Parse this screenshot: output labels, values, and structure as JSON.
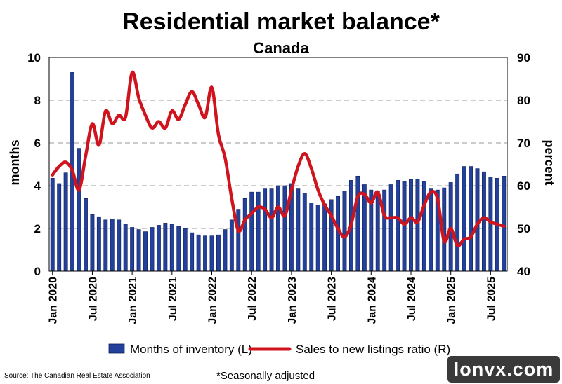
{
  "title": "Residential market balance*",
  "subtitle": "Canada",
  "footer": {
    "source": "Source: The Canadian Real Estate Association",
    "note": "*Seasonally adjusted",
    "watermark": "lonvx.com"
  },
  "colors": {
    "bars": "#23409a",
    "line": "#d0141d",
    "grid": "#9a9a9a"
  },
  "chart_data": {
    "type": "bar+line",
    "y_left": {
      "label": "months",
      "range": [
        0,
        10
      ],
      "ticks": [
        0,
        2,
        4,
        6,
        8,
        10
      ]
    },
    "y_right": {
      "label": "percent",
      "range": [
        40,
        90
      ],
      "ticks": [
        40,
        50,
        60,
        70,
        80,
        90
      ]
    },
    "x_ticks": [
      "Jan 2020",
      "Jul 2020",
      "Jan 2021",
      "Jul 2021",
      "Jan 2022",
      "Jul 2022",
      "Jan 2023",
      "Jul 2023",
      "Jan 2024",
      "Jul 2024",
      "Jan 2025",
      "Jul 2025"
    ],
    "grid": "horizontal dashed",
    "legend_position": "bottom",
    "series": [
      {
        "name": "Months of inventory (L)",
        "type": "bar",
        "axis": "left",
        "x": [
          "2020-01",
          "2020-02",
          "2020-03",
          "2020-04",
          "2020-05",
          "2020-06",
          "2020-07",
          "2020-08",
          "2020-09",
          "2020-10",
          "2020-11",
          "2020-12",
          "2021-01",
          "2021-02",
          "2021-03",
          "2021-04",
          "2021-05",
          "2021-06",
          "2021-07",
          "2021-08",
          "2021-09",
          "2021-10",
          "2021-11",
          "2021-12",
          "2022-01",
          "2022-02",
          "2022-03",
          "2022-04",
          "2022-05",
          "2022-06",
          "2022-07",
          "2022-08",
          "2022-09",
          "2022-10",
          "2022-11",
          "2022-12",
          "2023-01",
          "2023-02",
          "2023-03",
          "2023-04",
          "2023-05",
          "2023-06",
          "2023-07",
          "2023-08",
          "2023-09",
          "2023-10",
          "2023-11",
          "2023-12",
          "2024-01",
          "2024-02",
          "2024-03",
          "2024-04",
          "2024-05",
          "2024-06",
          "2024-07",
          "2024-08",
          "2024-09",
          "2024-10",
          "2024-11",
          "2024-12",
          "2025-01",
          "2025-02",
          "2025-03",
          "2025-04",
          "2025-05",
          "2025-06",
          "2025-07",
          "2025-08",
          "2025-09"
        ],
        "values": [
          4.35,
          4.1,
          4.6,
          9.3,
          5.75,
          3.4,
          2.65,
          2.55,
          2.4,
          2.45,
          2.4,
          2.2,
          2.05,
          1.95,
          1.85,
          2.05,
          2.15,
          2.25,
          2.2,
          2.1,
          2.0,
          1.8,
          1.7,
          1.65,
          1.65,
          1.7,
          1.95,
          2.4,
          2.9,
          3.4,
          3.7,
          3.7,
          3.85,
          3.85,
          4.0,
          4.0,
          4.1,
          3.85,
          3.65,
          3.2,
          3.1,
          3.15,
          3.35,
          3.5,
          3.75,
          4.25,
          4.45,
          4.05,
          3.8,
          3.75,
          3.8,
          4.05,
          4.25,
          4.2,
          4.3,
          4.3,
          4.2,
          3.85,
          3.8,
          3.9,
          4.15,
          4.55,
          4.9,
          4.9,
          4.8,
          4.65,
          4.4,
          4.35,
          4.45
        ]
      },
      {
        "name": "Sales to new listings ratio (R)",
        "type": "line",
        "axis": "right",
        "x": [
          "2020-01",
          "2020-02",
          "2020-03",
          "2020-04",
          "2020-05",
          "2020-06",
          "2020-07",
          "2020-08",
          "2020-09",
          "2020-10",
          "2020-11",
          "2020-12",
          "2021-01",
          "2021-02",
          "2021-03",
          "2021-04",
          "2021-05",
          "2021-06",
          "2021-07",
          "2021-08",
          "2021-09",
          "2021-10",
          "2021-11",
          "2021-12",
          "2022-01",
          "2022-02",
          "2022-03",
          "2022-04",
          "2022-05",
          "2022-06",
          "2022-07",
          "2022-08",
          "2022-09",
          "2022-10",
          "2022-11",
          "2022-12",
          "2023-01",
          "2023-02",
          "2023-03",
          "2023-04",
          "2023-05",
          "2023-06",
          "2023-07",
          "2023-08",
          "2023-09",
          "2023-10",
          "2023-11",
          "2023-12",
          "2024-01",
          "2024-02",
          "2024-03",
          "2024-04",
          "2024-05",
          "2024-06",
          "2024-07",
          "2024-08",
          "2024-09",
          "2024-10",
          "2024-11",
          "2024-12",
          "2025-01",
          "2025-02",
          "2025-03",
          "2025-04",
          "2025-05",
          "2025-06",
          "2025-07",
          "2025-08",
          "2025-09"
        ],
        "values": [
          62.5,
          64.5,
          65.5,
          63.5,
          59,
          67,
          74.5,
          69.5,
          77.5,
          74.5,
          76.5,
          76,
          86.5,
          80.5,
          76.5,
          73.5,
          75,
          73.5,
          77.5,
          75.5,
          79,
          82,
          79,
          76,
          83,
          72,
          66.5,
          57,
          49.5,
          52,
          53.5,
          55,
          54.5,
          52.5,
          55,
          53,
          59,
          64.5,
          67.5,
          64,
          59,
          55.5,
          53,
          50,
          48,
          51,
          57.5,
          58,
          56,
          58.5,
          53,
          52.5,
          52.5,
          51,
          52.5,
          51.5,
          55.5,
          58.5,
          57,
          47,
          50,
          46,
          47.5,
          48,
          51,
          52.5,
          51.5,
          51,
          50.5
        ]
      }
    ]
  }
}
